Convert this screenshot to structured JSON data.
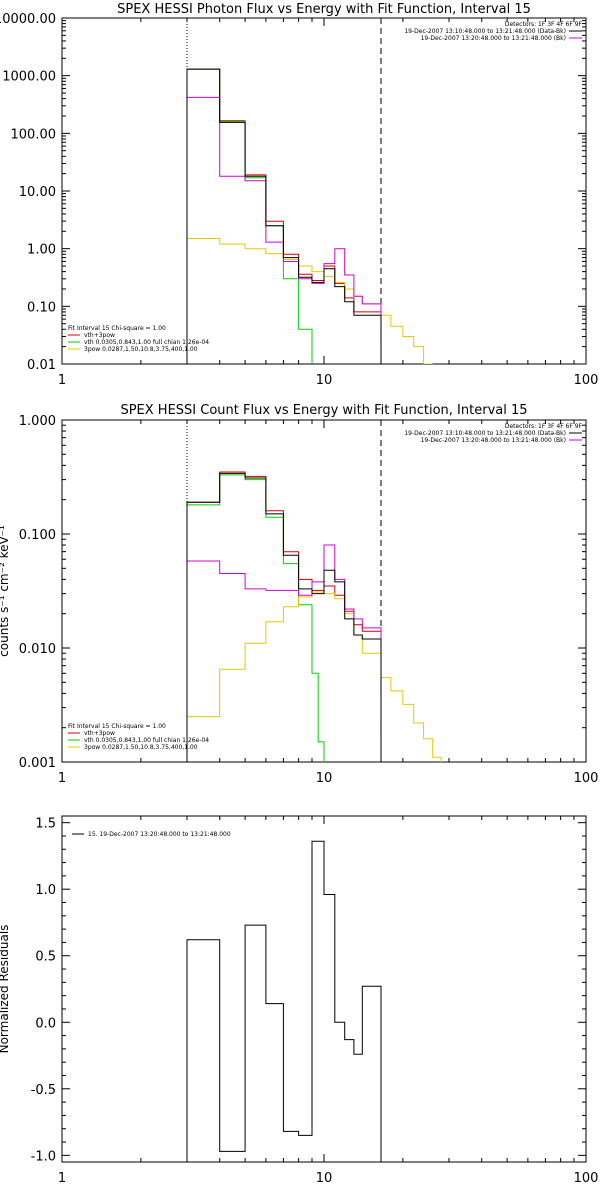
{
  "chart_data": [
    {
      "type": "line",
      "title": "SPEX HESSI Photon Flux vs Energy with Fit Function, Interval 15",
      "xscale": "log",
      "yscale": "log",
      "xlim": [
        1,
        100
      ],
      "ylim": [
        0.01,
        10000
      ],
      "xticks": [
        1,
        10,
        100
      ],
      "xtick_labels": [
        "1",
        "10",
        "100"
      ],
      "yticks": [
        0.01,
        0.1,
        1,
        10,
        100,
        1000,
        10000
      ],
      "ytick_labels": [
        "0.01",
        "0.10",
        "1.00",
        "10.00",
        "100.00",
        "1000.00",
        "10000.00"
      ],
      "ylabel": "",
      "vlines": [
        {
          "x": 3,
          "style": "dotted"
        },
        {
          "x": 16.5,
          "style": "dashed"
        }
      ],
      "header_lines": [
        "Detectors: 1F 3F 4F 6F 9F",
        "19-Dec-2007 13:10:48.000 to 13:21:48.000 (Data-Bk)",
        "19-Dec-2007 13:20:48.000 to 13:21:48.000 (Bk)"
      ],
      "fit_info": "Fit Interval 15   Chi-square = 1.00",
      "series": [
        {
          "name": "vth+3pow",
          "color": "#d40000",
          "style": "step",
          "edges": [
            3,
            4,
            5,
            6,
            7,
            8,
            9,
            10,
            11,
            12,
            13,
            14,
            16.5
          ],
          "values": [
            1300,
            165,
            19,
            3.0,
            0.8,
            0.36,
            0.28,
            0.5,
            0.25,
            0.14,
            0.08,
            0.08
          ]
        },
        {
          "name": "vth 0.0305,0.843,1.00  full chian 1.26e-04",
          "color": "#00d200",
          "style": "step",
          "edges": [
            3,
            4,
            5,
            6,
            7,
            8,
            9
          ],
          "values": [
            1300,
            160,
            17,
            2.5,
            0.3,
            0.04
          ]
        },
        {
          "name": "3pow 0.0287,1.50,10.8,3.75,400,1.00",
          "color": "#e8c800",
          "style": "step",
          "edges": [
            3,
            4,
            5,
            6,
            7,
            8,
            9,
            10,
            11,
            12,
            13,
            14,
            16.5,
            18,
            20,
            22,
            24,
            26
          ],
          "values": [
            1.5,
            1.2,
            1.0,
            0.82,
            0.65,
            0.5,
            0.4,
            0.33,
            0.26,
            0.2,
            0.15,
            0.11,
            0.07,
            0.045,
            0.03,
            0.02,
            0.01
          ]
        },
        {
          "name": "",
          "color": "#d400d4",
          "style": "step",
          "edges": [
            3,
            4,
            5,
            6,
            7,
            8,
            9,
            10,
            11,
            12,
            13,
            14,
            16.5
          ],
          "values": [
            420,
            18,
            15,
            1.3,
            0.6,
            0.3,
            0.25,
            0.55,
            1.0,
            0.35,
            0.15,
            0.11
          ]
        },
        {
          "name": "",
          "color": "#000000",
          "style": "step",
          "edges": [
            3,
            4,
            5,
            6,
            7,
            8,
            9,
            10,
            11,
            12,
            13,
            14,
            16.5
          ],
          "values": [
            1300,
            155,
            18,
            2.5,
            0.7,
            0.32,
            0.26,
            0.45,
            0.22,
            0.12,
            0.07,
            0.07
          ]
        }
      ]
    },
    {
      "type": "line",
      "title": "SPEX HESSI Count Flux vs Energy with Fit Function, Interval 15",
      "xscale": "log",
      "yscale": "log",
      "xlim": [
        1,
        100
      ],
      "ylim": [
        0.001,
        1
      ],
      "xticks": [
        1,
        10,
        100
      ],
      "xtick_labels": [
        "1",
        "10",
        "100"
      ],
      "yticks": [
        0.001,
        0.01,
        0.1,
        1
      ],
      "ytick_labels": [
        "0.001",
        "0.010",
        "0.100",
        "1.000"
      ],
      "ylabel": "counts s⁻¹ cm⁻² keV⁻¹",
      "vlines": [
        {
          "x": 3,
          "style": "dotted"
        },
        {
          "x": 16.5,
          "style": "dashed"
        }
      ],
      "header_lines": [
        "Detectors: 1F 3F 4F 6F 9F",
        "19-Dec-2007 13:10:48.000 to 13:21:48.000 (Data-Bk)",
        "19-Dec-2007 13:20:48.000 to 13:21:48.000 (Bk)"
      ],
      "fit_info": "Fit Interval 15   Chi-square = 1.00",
      "series": [
        {
          "name": "vth+3pow",
          "color": "#d40000",
          "style": "step",
          "edges": [
            3,
            4,
            5,
            6,
            7,
            8,
            9,
            10,
            11,
            12,
            13,
            14,
            16.5
          ],
          "values": [
            0.19,
            0.35,
            0.32,
            0.16,
            0.07,
            0.04,
            0.032,
            0.035,
            0.029,
            0.021,
            0.016,
            0.014
          ]
        },
        {
          "name": "vth 0.0305,0.843,1.00  full chian 1.26e-04",
          "color": "#00d200",
          "style": "step",
          "edges": [
            3,
            4,
            5,
            6,
            7,
            8,
            9,
            9.5,
            10
          ],
          "values": [
            0.18,
            0.33,
            0.3,
            0.14,
            0.055,
            0.024,
            0.006,
            0.0015
          ]
        },
        {
          "name": "3pow 0.0287,1.50,10.8,3.75,400,1.00",
          "color": "#e8c800",
          "style": "step",
          "edges": [
            3,
            4,
            5,
            6,
            7,
            8,
            9,
            10,
            11,
            12,
            13,
            14,
            16.5,
            18,
            20,
            22,
            24,
            26,
            28
          ],
          "values": [
            0.0025,
            0.0065,
            0.011,
            0.017,
            0.023,
            0.028,
            0.031,
            0.03,
            0.027,
            0.02,
            0.013,
            0.009,
            0.0055,
            0.0042,
            0.0032,
            0.0022,
            0.0016,
            0.0011
          ]
        },
        {
          "name": "",
          "color": "#d400d4",
          "style": "step",
          "edges": [
            3,
            4,
            5,
            6,
            7,
            8,
            9,
            10,
            11,
            12,
            13,
            14,
            16.5
          ],
          "values": [
            0.058,
            0.045,
            0.033,
            0.032,
            0.032,
            0.029,
            0.038,
            0.08,
            0.04,
            0.022,
            0.018,
            0.015
          ]
        },
        {
          "name": "",
          "color": "#000000",
          "style": "step",
          "edges": [
            3,
            4,
            5,
            6,
            7,
            8,
            9,
            10,
            11,
            12,
            13,
            14,
            16.5
          ],
          "values": [
            0.19,
            0.34,
            0.31,
            0.15,
            0.065,
            0.033,
            0.03,
            0.048,
            0.038,
            0.018,
            0.013,
            0.012
          ]
        }
      ]
    },
    {
      "type": "line",
      "title": "",
      "xscale": "log",
      "yscale": "linear",
      "xlim": [
        1,
        100
      ],
      "ylim": [
        -1.05,
        1.55
      ],
      "xticks": [
        1,
        10,
        100
      ],
      "xtick_labels": [
        "1",
        "10",
        "100"
      ],
      "yticks": [
        -1,
        -0.5,
        0,
        0.5,
        1,
        1.5
      ],
      "ytick_labels": [
        "-1.0",
        "-0.5",
        "0.0",
        "0.5",
        "1.0",
        "1.5"
      ],
      "ylabel": "Normalized Residuals",
      "legend": "15. 19-Dec-2007 13:20:48.000 to 13:21:48.000",
      "series": [
        {
          "name": "15. 19-Dec-2007 13:20:48.000 to 13:21:48.000",
          "color": "#000000",
          "style": "step",
          "edges": [
            3,
            4,
            5,
            6,
            7,
            8,
            9,
            10,
            11,
            12,
            13,
            14,
            16.5
          ],
          "values": [
            0.62,
            -0.97,
            0.73,
            0.14,
            -0.82,
            -0.85,
            1.36,
            0.96,
            0.0,
            -0.13,
            -0.24,
            0.27
          ]
        }
      ]
    }
  ]
}
